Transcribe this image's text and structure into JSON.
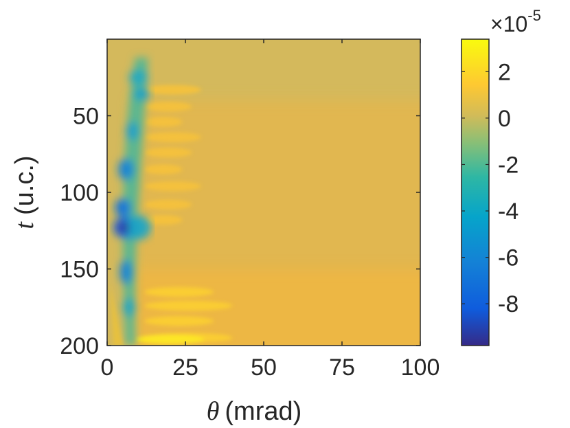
{
  "chart_data": {
    "type": "heatmap",
    "title": "",
    "xlabel": {
      "symbol": "θ",
      "unit": "(mrad)"
    },
    "ylabel": {
      "symbol": "t",
      "unit": "(u.c.)"
    },
    "xlim": [
      0,
      100
    ],
    "ylim": [
      0,
      200
    ],
    "y_reversed": true,
    "xticks": [
      0,
      25,
      50,
      75,
      100
    ],
    "yticks": [
      50,
      100,
      150,
      200
    ],
    "colorbar": {
      "colormap": "parula",
      "clim": [
        -9.8,
        3.4
      ],
      "ticks": [
        2,
        0,
        -2,
        -4,
        -6,
        -8
      ],
      "tick_labels": [
        "2",
        "0",
        "-2",
        "-4",
        "-6",
        "-8"
      ],
      "multiplier_base": "×10",
      "multiplier_exponent": "-5"
    },
    "background_value": 0.6,
    "features": [
      {
        "t": 30,
        "theta_min": 5,
        "theta_max": 13,
        "min_value": -4.5
      },
      {
        "t": 90,
        "theta_min": 2,
        "theta_max": 10,
        "min_value": -7.5
      },
      {
        "t": 123,
        "theta_min": 2,
        "theta_max": 12,
        "min_value": -9.8
      },
      {
        "t": 155,
        "theta_min": 3,
        "theta_max": 9,
        "min_value": -7.0
      },
      {
        "t": 195,
        "theta_min": 15,
        "theta_max": 40,
        "max_value": 3.4
      }
    ]
  }
}
